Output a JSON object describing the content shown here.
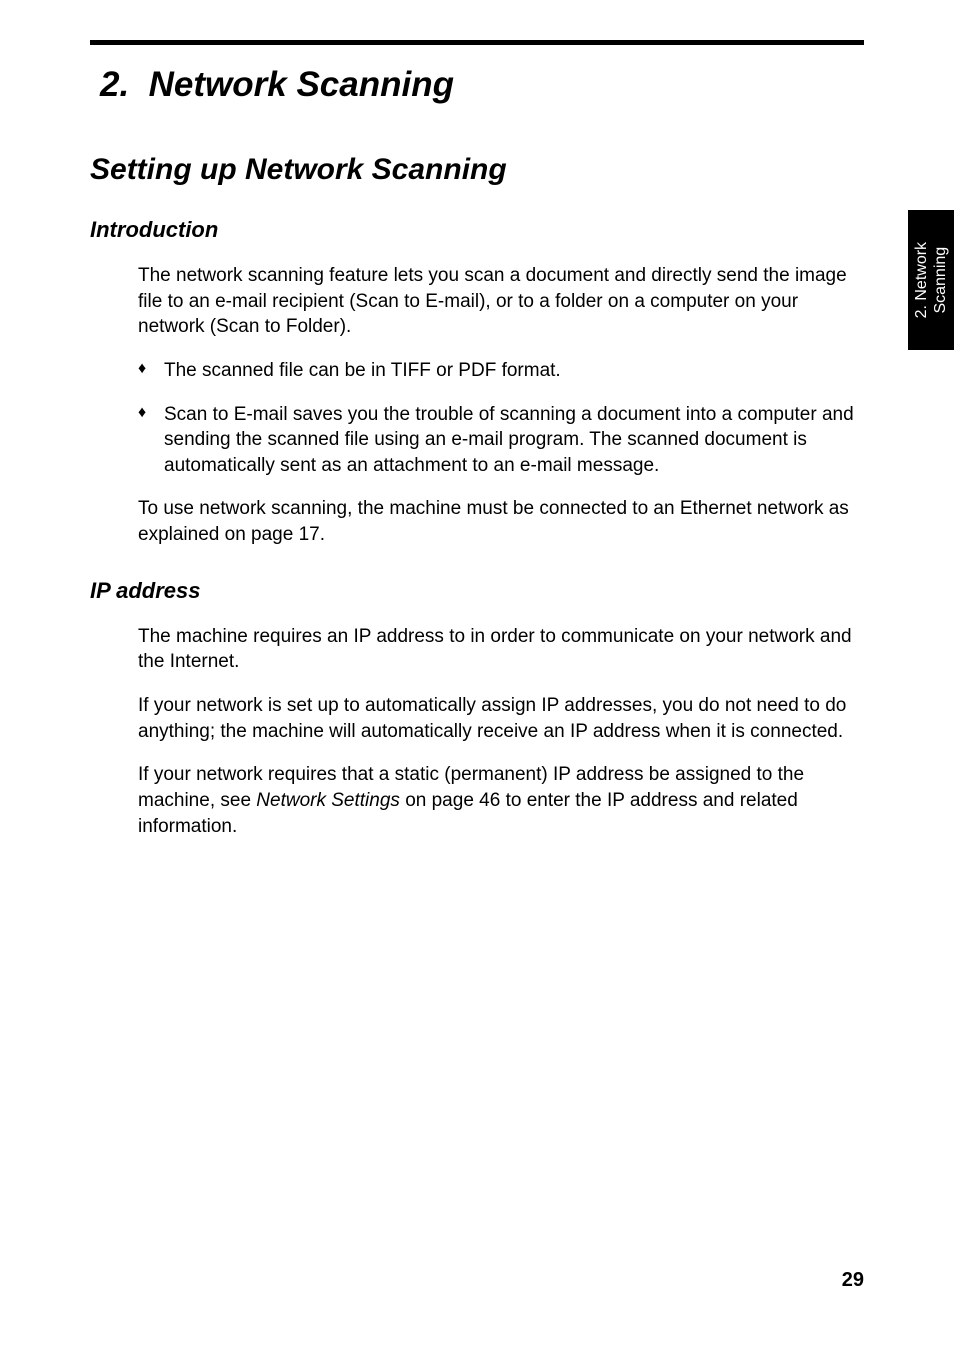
{
  "chapter": {
    "number": "2.",
    "title": "Network Scanning"
  },
  "section": {
    "title": "Setting up Network Scanning"
  },
  "intro": {
    "heading": "Introduction",
    "para1": "The network scanning feature lets you scan a document and directly send the image file to an e-mail recipient (Scan to E-mail), or to a folder on a computer on your network (Scan to Folder).",
    "bullet1": "The scanned file can be in TIFF or PDF format.",
    "bullet2": "Scan to E-mail saves you the trouble of scanning a document into a computer and sending the scanned file using an e-mail program. The scanned document is automatically sent as an attachment to an e-mail message.",
    "para2": "To use network scanning, the machine must be connected to an Ethernet network as explained on page 17."
  },
  "ip": {
    "heading": "IP address",
    "para1": "The machine requires an IP address to in order to communicate on your network and the Internet.",
    "para2": "If your network is set up to automatically assign IP addresses, you do not need to do anything; the machine will automatically receive an IP address when it is connected.",
    "para3_a": "If your network requires that a static (permanent) IP address be assigned to the machine, see ",
    "para3_italic": "Network Settings",
    "para3_b": " on page 46 to enter the IP address and related information."
  },
  "sidetab": {
    "line1": "2. Network",
    "line2": "Scanning"
  },
  "page_number": "29",
  "styles": {
    "background_color": "#ffffff",
    "text_color": "#000000",
    "tab_bg": "#000000",
    "tab_text": "#ffffff",
    "body_fontsize": 19,
    "chapter_fontsize": 35,
    "section_fontsize": 30,
    "subsection_fontsize": 22
  }
}
